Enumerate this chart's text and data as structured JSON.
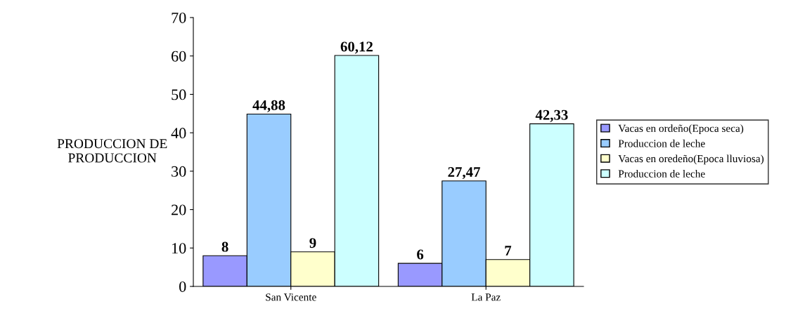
{
  "chart_data": {
    "type": "bar",
    "ylabel": "PRODUCCION DE\nPRODUCCION",
    "categories": [
      "San Vicente",
      "La Paz"
    ],
    "series": [
      {
        "name": "Vacas en ordeño(Epoca seca)",
        "color": "#9999ff",
        "values": [
          8,
          6
        ],
        "value_labels": [
          "8",
          "6"
        ]
      },
      {
        "name": "Produccion de leche",
        "color": "#99ccff",
        "values": [
          44.88,
          27.47
        ],
        "value_labels": [
          "44,88",
          "27,47"
        ]
      },
      {
        "name": "Vacas en oredeño(Epoca lluviosa)",
        "color": "#ffffcc",
        "values": [
          9,
          7
        ],
        "value_labels": [
          "9",
          "7"
        ]
      },
      {
        "name": "Produccion de leche",
        "color": "#ccffff",
        "values": [
          60.12,
          42.33
        ],
        "value_labels": [
          "60,12",
          "42,33"
        ]
      }
    ],
    "ylim": [
      0,
      70
    ],
    "yticks": [
      0,
      10,
      20,
      30,
      40,
      50,
      60,
      70
    ],
    "grid": false,
    "legend": "right"
  }
}
